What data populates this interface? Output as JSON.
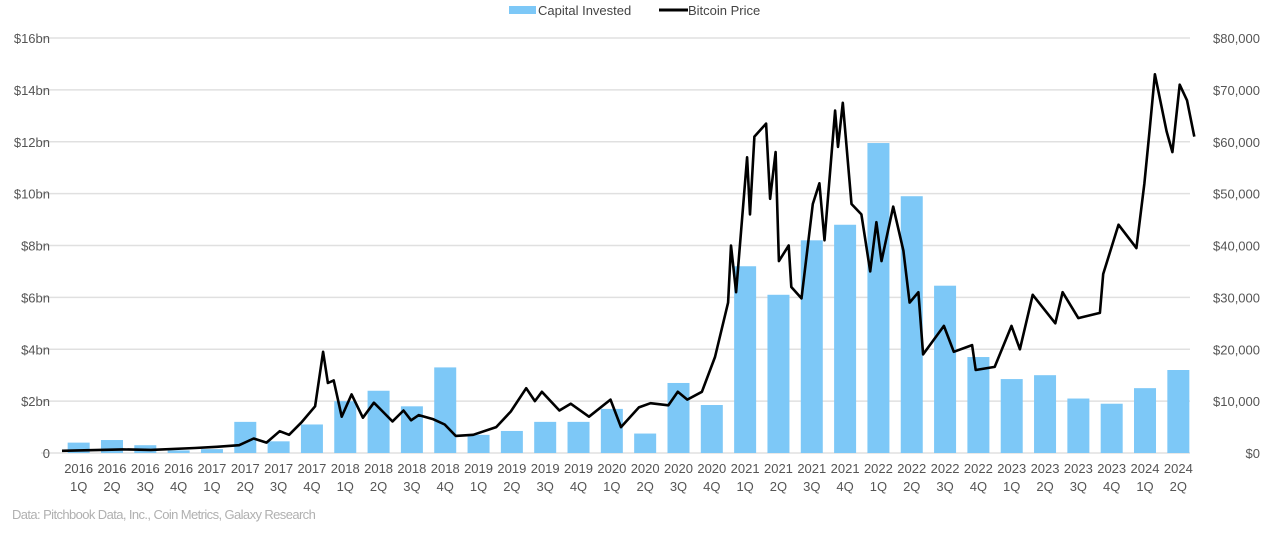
{
  "chart_data": {
    "type": "bar+line",
    "legend": {
      "position": "top",
      "entries": [
        "Capital Invested",
        "Bitcoin Price"
      ]
    },
    "colors": {
      "bars": "#7dc8f7",
      "line": "#000000",
      "grid": "#e0e0e0",
      "text": "#555555"
    },
    "grid": true,
    "categories": [
      [
        "2016",
        "1Q"
      ],
      [
        "2016",
        "2Q"
      ],
      [
        "2016",
        "3Q"
      ],
      [
        "2016",
        "4Q"
      ],
      [
        "2017",
        "1Q"
      ],
      [
        "2017",
        "2Q"
      ],
      [
        "2017",
        "3Q"
      ],
      [
        "2017",
        "4Q"
      ],
      [
        "2018",
        "1Q"
      ],
      [
        "2018",
        "2Q"
      ],
      [
        "2018",
        "3Q"
      ],
      [
        "2018",
        "4Q"
      ],
      [
        "2019",
        "1Q"
      ],
      [
        "2019",
        "2Q"
      ],
      [
        "2019",
        "3Q"
      ],
      [
        "2019",
        "4Q"
      ],
      [
        "2020",
        "1Q"
      ],
      [
        "2020",
        "2Q"
      ],
      [
        "2020",
        "3Q"
      ],
      [
        "2020",
        "4Q"
      ],
      [
        "2021",
        "1Q"
      ],
      [
        "2021",
        "2Q"
      ],
      [
        "2021",
        "3Q"
      ],
      [
        "2021",
        "4Q"
      ],
      [
        "2022",
        "1Q"
      ],
      [
        "2022",
        "2Q"
      ],
      [
        "2022",
        "3Q"
      ],
      [
        "2022",
        "4Q"
      ],
      [
        "2023",
        "1Q"
      ],
      [
        "2023",
        "2Q"
      ],
      [
        "2023",
        "3Q"
      ],
      [
        "2023",
        "4Q"
      ],
      [
        "2024",
        "1Q"
      ],
      [
        "2024",
        "2Q"
      ]
    ],
    "left_axis": {
      "ylim": [
        0,
        16
      ],
      "ticks": [
        "0",
        "$2bn",
        "$4bn",
        "$6bn",
        "$8bn",
        "$10bn",
        "$12bn",
        "$14bn",
        "$16bn"
      ]
    },
    "right_axis": {
      "ylim": [
        0,
        80000
      ],
      "ticks": [
        "$0",
        "$10,000",
        "$20,000",
        "$30,000",
        "$40,000",
        "$50,000",
        "$60,000",
        "$70,000",
        "$80,000"
      ]
    },
    "series": [
      {
        "name": "Capital Invested",
        "type": "bar",
        "axis": "left",
        "unit": "bn USD",
        "values": [
          0.4,
          0.5,
          0.3,
          0.1,
          0.15,
          1.2,
          0.45,
          1.1,
          2.0,
          2.4,
          1.8,
          3.3,
          0.7,
          0.85,
          1.2,
          1.2,
          1.7,
          0.75,
          2.7,
          1.85,
          7.2,
          6.1,
          8.2,
          8.8,
          11.95,
          9.9,
          6.45,
          3.7,
          2.85,
          3.0,
          2.1,
          1.9,
          2.5,
          3.2
        ]
      },
      {
        "name": "Bitcoin Price",
        "type": "line",
        "axis": "right",
        "unit": "USD",
        "points": [
          [
            "2016-01-01",
            430
          ],
          [
            "2016-06-15",
            700
          ],
          [
            "2016-09-01",
            600
          ],
          [
            "2016-12-31",
            960
          ],
          [
            "2017-03-01",
            1200
          ],
          [
            "2017-05-01",
            1500
          ],
          [
            "2017-06-10",
            2800
          ],
          [
            "2017-07-15",
            2000
          ],
          [
            "2017-08-20",
            4200
          ],
          [
            "2017-09-15",
            3500
          ],
          [
            "2017-10-20",
            6000
          ],
          [
            "2017-11-25",
            9000
          ],
          [
            "2017-12-17",
            19500
          ],
          [
            "2017-12-30",
            13500
          ],
          [
            "2018-01-15",
            14000
          ],
          [
            "2018-02-06",
            7000
          ],
          [
            "2018-03-05",
            11300
          ],
          [
            "2018-04-05",
            6800
          ],
          [
            "2018-05-05",
            9700
          ],
          [
            "2018-06-25",
            6100
          ],
          [
            "2018-07-25",
            8200
          ],
          [
            "2018-08-15",
            6300
          ],
          [
            "2018-09-05",
            7300
          ],
          [
            "2018-10-15",
            6500
          ],
          [
            "2018-11-15",
            5500
          ],
          [
            "2018-12-15",
            3300
          ],
          [
            "2019-02-01",
            3500
          ],
          [
            "2019-04-05",
            5000
          ],
          [
            "2019-05-15",
            8000
          ],
          [
            "2019-06-26",
            12500
          ],
          [
            "2019-07-20",
            10000
          ],
          [
            "2019-08-08",
            11800
          ],
          [
            "2019-09-25",
            8200
          ],
          [
            "2019-10-26",
            9500
          ],
          [
            "2019-12-15",
            7000
          ],
          [
            "2020-02-12",
            10300
          ],
          [
            "2020-03-12",
            5000
          ],
          [
            "2020-04-30",
            8800
          ],
          [
            "2020-06-01",
            9600
          ],
          [
            "2020-07-20",
            9200
          ],
          [
            "2020-08-15",
            11800
          ],
          [
            "2020-09-10",
            10300
          ],
          [
            "2020-10-20",
            11800
          ],
          [
            "2020-11-25",
            18500
          ],
          [
            "2020-12-31",
            29000
          ],
          [
            "2021-01-08",
            40000
          ],
          [
            "2021-01-22",
            31000
          ],
          [
            "2021-02-21",
            57000
          ],
          [
            "2021-03-01",
            46000
          ],
          [
            "2021-03-13",
            61000
          ],
          [
            "2021-04-14",
            63500
          ],
          [
            "2021-04-25",
            49000
          ],
          [
            "2021-05-10",
            58000
          ],
          [
            "2021-05-19",
            37000
          ],
          [
            "2021-06-15",
            40000
          ],
          [
            "2021-06-22",
            32000
          ],
          [
            "2021-07-20",
            29800
          ],
          [
            "2021-08-20",
            48000
          ],
          [
            "2021-09-07",
            52000
          ],
          [
            "2021-09-21",
            41000
          ],
          [
            "2021-10-20",
            66000
          ],
          [
            "2021-10-28",
            59000
          ],
          [
            "2021-11-10",
            67500
          ],
          [
            "2021-12-04",
            48000
          ],
          [
            "2021-12-31",
            46000
          ],
          [
            "2022-01-24",
            35000
          ],
          [
            "2022-02-10",
            44500
          ],
          [
            "2022-02-24",
            37000
          ],
          [
            "2022-03-28",
            47500
          ],
          [
            "2022-04-25",
            39000
          ],
          [
            "2022-05-12",
            29000
          ],
          [
            "2022-06-05",
            31000
          ],
          [
            "2022-06-18",
            19000
          ],
          [
            "2022-08-14",
            24500
          ],
          [
            "2022-09-10",
            19500
          ],
          [
            "2022-10-30",
            20800
          ],
          [
            "2022-11-09",
            16000
          ],
          [
            "2022-12-31",
            16600
          ],
          [
            "2023-02-15",
            24500
          ],
          [
            "2023-03-10",
            20000
          ],
          [
            "2023-04-14",
            30500
          ],
          [
            "2023-06-15",
            25000
          ],
          [
            "2023-07-05",
            31000
          ],
          [
            "2023-08-17",
            26000
          ],
          [
            "2023-10-15",
            27000
          ],
          [
            "2023-10-24",
            34500
          ],
          [
            "2023-12-05",
            44000
          ],
          [
            "2024-01-23",
            39500
          ],
          [
            "2024-02-14",
            52000
          ],
          [
            "2024-02-28",
            62000
          ],
          [
            "2024-03-14",
            73000
          ],
          [
            "2024-04-15",
            62000
          ],
          [
            "2024-05-01",
            58000
          ],
          [
            "2024-05-21",
            71000
          ],
          [
            "2024-06-10",
            68000
          ],
          [
            "2024-06-30",
            61000
          ]
        ]
      }
    ]
  },
  "source": "Data: Pitchbook Data, Inc., Coin Metrics, Galaxy Research"
}
